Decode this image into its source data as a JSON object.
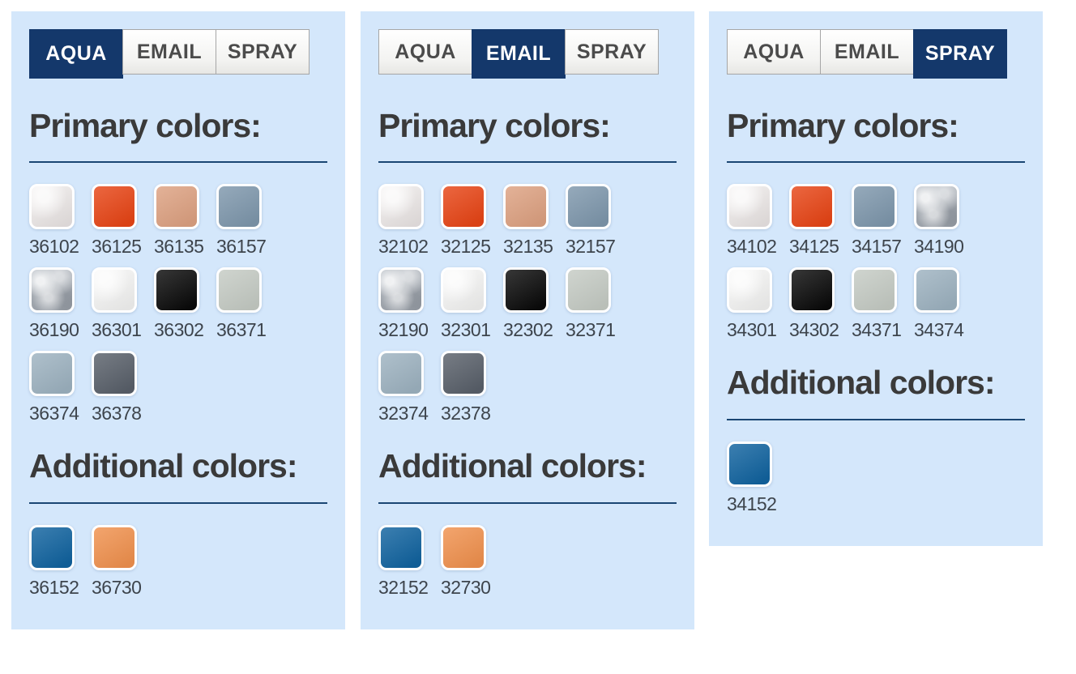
{
  "tabs": [
    "AQUA",
    "EMAIL",
    "SPRAY"
  ],
  "headings": {
    "primary": "Primary colors:",
    "additional": "Additional colors:"
  },
  "colors": {
    "panel_background": "#d4e7fb",
    "tab_active_background": "#14386b",
    "tab_active_text": "#ffffff",
    "tab_inactive_text": "#4b4b4b",
    "heading_text": "#3a3a3a",
    "rule": "#1a4673",
    "code_text": "#3d444c"
  },
  "panels": [
    {
      "active_tab": "AQUA",
      "primary_heading": "Primary colors:",
      "additional_heading": "Additional colors:",
      "primary": [
        {
          "code": "36102",
          "color": "#e7e2e1",
          "finish": "sheen"
        },
        {
          "code": "36125",
          "color": "#e74516",
          "finish": "plain"
        },
        {
          "code": "36135",
          "color": "#dda181",
          "finish": "plain"
        },
        {
          "code": "36157",
          "color": "#7e97ac",
          "finish": "plain"
        },
        {
          "code": "36190",
          "color": "#abb1b9",
          "finish": "mottled"
        },
        {
          "code": "36301",
          "color": "#f0f0ef",
          "finish": "sheen"
        },
        {
          "code": "36302",
          "color": "#0b0b0b",
          "finish": "plain"
        },
        {
          "code": "36371",
          "color": "#c5cbc4",
          "finish": "plain"
        },
        {
          "code": "36374",
          "color": "#9db2c0",
          "finish": "plain"
        },
        {
          "code": "36378",
          "color": "#59606a",
          "finish": "plain"
        }
      ],
      "additional": [
        {
          "code": "36152",
          "color": "#11639f",
          "finish": "plain"
        },
        {
          "code": "36730",
          "color": "#f0914e",
          "finish": "plain"
        }
      ]
    },
    {
      "active_tab": "EMAIL",
      "primary_heading": "Primary colors:",
      "additional_heading": "Additional colors:",
      "primary": [
        {
          "code": "32102",
          "color": "#e7e2e1",
          "finish": "sheen"
        },
        {
          "code": "32125",
          "color": "#e74516",
          "finish": "plain"
        },
        {
          "code": "32135",
          "color": "#dda181",
          "finish": "plain"
        },
        {
          "code": "32157",
          "color": "#7e97ac",
          "finish": "plain"
        },
        {
          "code": "32190",
          "color": "#abb1b9",
          "finish": "mottled"
        },
        {
          "code": "32301",
          "color": "#f0f0ef",
          "finish": "sheen"
        },
        {
          "code": "32302",
          "color": "#0b0b0b",
          "finish": "plain"
        },
        {
          "code": "32371",
          "color": "#c5cbc4",
          "finish": "plain"
        },
        {
          "code": "32374",
          "color": "#9db2c0",
          "finish": "plain"
        },
        {
          "code": "32378",
          "color": "#59606a",
          "finish": "plain"
        }
      ],
      "additional": [
        {
          "code": "32152",
          "color": "#11639f",
          "finish": "plain"
        },
        {
          "code": "32730",
          "color": "#f0914e",
          "finish": "plain"
        }
      ]
    },
    {
      "active_tab": "SPRAY",
      "primary_heading": "Primary colors:",
      "additional_heading": "Additional colors:",
      "primary": [
        {
          "code": "34102",
          "color": "#e7e2e1",
          "finish": "sheen"
        },
        {
          "code": "34125",
          "color": "#e74516",
          "finish": "plain"
        },
        {
          "code": "34157",
          "color": "#7e97ac",
          "finish": "plain"
        },
        {
          "code": "34190",
          "color": "#abb1b9",
          "finish": "mottled"
        },
        {
          "code": "34301",
          "color": "#f0f0ef",
          "finish": "sheen"
        },
        {
          "code": "34302",
          "color": "#0b0b0b",
          "finish": "plain"
        },
        {
          "code": "34371",
          "color": "#c5cbc4",
          "finish": "plain"
        },
        {
          "code": "34374",
          "color": "#9db2c0",
          "finish": "plain"
        }
      ],
      "additional": [
        {
          "code": "34152",
          "color": "#11639f",
          "finish": "plain"
        }
      ]
    }
  ]
}
